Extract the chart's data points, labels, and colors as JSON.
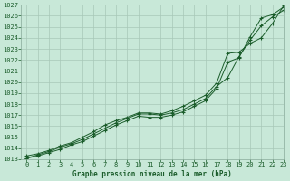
{
  "title": "Graphe pression niveau de la mer (hPa)",
  "bg_color": "#c8e8d8",
  "grid_color": "#a8c8b8",
  "line_color": "#1a5c2a",
  "xlim": [
    -0.5,
    23
  ],
  "ylim": [
    1013,
    1027
  ],
  "xticks": [
    0,
    1,
    2,
    3,
    4,
    5,
    6,
    7,
    8,
    9,
    10,
    11,
    12,
    13,
    14,
    15,
    16,
    17,
    18,
    19,
    20,
    21,
    22,
    23
  ],
  "yticks": [
    1013,
    1014,
    1015,
    1016,
    1017,
    1018,
    1019,
    1020,
    1021,
    1022,
    1023,
    1024,
    1025,
    1026,
    1027
  ],
  "line1_x": [
    0,
    1,
    2,
    3,
    4,
    5,
    6,
    7,
    8,
    9,
    10,
    11,
    12,
    13,
    14,
    15,
    16,
    17,
    18,
    19,
    20,
    21,
    22,
    23
  ],
  "line1_y": [
    1013.1,
    1013.4,
    1013.7,
    1014.1,
    1014.4,
    1014.8,
    1015.3,
    1015.8,
    1016.3,
    1016.7,
    1017.1,
    1017.1,
    1017.0,
    1017.2,
    1017.5,
    1018.0,
    1018.5,
    1019.6,
    1020.4,
    1022.3,
    1023.8,
    1025.1,
    1025.9,
    1026.5
  ],
  "line2_x": [
    0,
    1,
    2,
    3,
    4,
    5,
    6,
    7,
    8,
    9,
    10,
    11,
    12,
    13,
    14,
    15,
    16,
    17,
    18,
    19,
    20,
    21,
    22,
    23
  ],
  "line2_y": [
    1013.1,
    1013.3,
    1013.6,
    1013.9,
    1014.3,
    1014.6,
    1015.1,
    1015.6,
    1016.1,
    1016.5,
    1016.9,
    1016.8,
    1016.8,
    1017.0,
    1017.3,
    1017.8,
    1018.3,
    1019.4,
    1021.8,
    1022.2,
    1024.1,
    1025.8,
    1026.1,
    1026.8
  ],
  "line3_x": [
    0,
    1,
    2,
    3,
    4,
    5,
    6,
    7,
    8,
    9,
    10,
    11,
    12,
    13,
    14,
    15,
    16,
    17,
    18,
    19,
    20,
    21,
    22,
    23
  ],
  "line3_y": [
    1013.3,
    1013.5,
    1013.8,
    1014.2,
    1014.5,
    1015.0,
    1015.5,
    1016.1,
    1016.5,
    1016.8,
    1017.2,
    1017.2,
    1017.1,
    1017.4,
    1017.8,
    1018.3,
    1018.8,
    1019.9,
    1022.6,
    1022.7,
    1023.5,
    1024.0,
    1025.3,
    1026.9
  ],
  "tick_fontsize": 5,
  "label_fontsize": 5.5
}
